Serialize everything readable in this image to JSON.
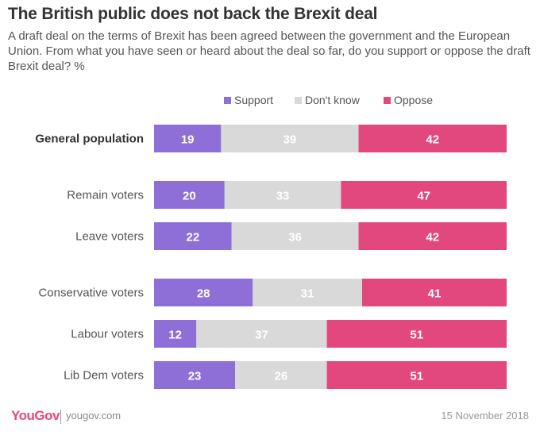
{
  "title": "The British public does not back the Brexit deal",
  "subtitle": "A draft deal on the terms of Brexit has been agreed between the government and the European Union. From what you have seen or heard about the deal so far, do you support or oppose the draft Brexit deal? %",
  "colors": {
    "support": "#8e6fd8",
    "dont_know": "#d9d9d9",
    "oppose": "#e2487d"
  },
  "chart_data": {
    "type": "bar",
    "orientation": "horizontal-stacked-100",
    "categories": [
      "General population",
      "Remain voters",
      "Leave voters",
      "Conservative voters",
      "Labour voters",
      "Lib Dem voters"
    ],
    "series": [
      {
        "name": "Support",
        "values": [
          19,
          20,
          22,
          28,
          12,
          23
        ]
      },
      {
        "name": "Don't know",
        "values": [
          39,
          33,
          36,
          31,
          37,
          26
        ]
      },
      {
        "name": "Oppose",
        "values": [
          42,
          47,
          42,
          41,
          51,
          51
        ]
      }
    ],
    "xlim": [
      0,
      100
    ],
    "legend_position": "top"
  },
  "footer": {
    "brand": "YouGov",
    "url": "yougov.com",
    "date": "15 November 2018"
  }
}
